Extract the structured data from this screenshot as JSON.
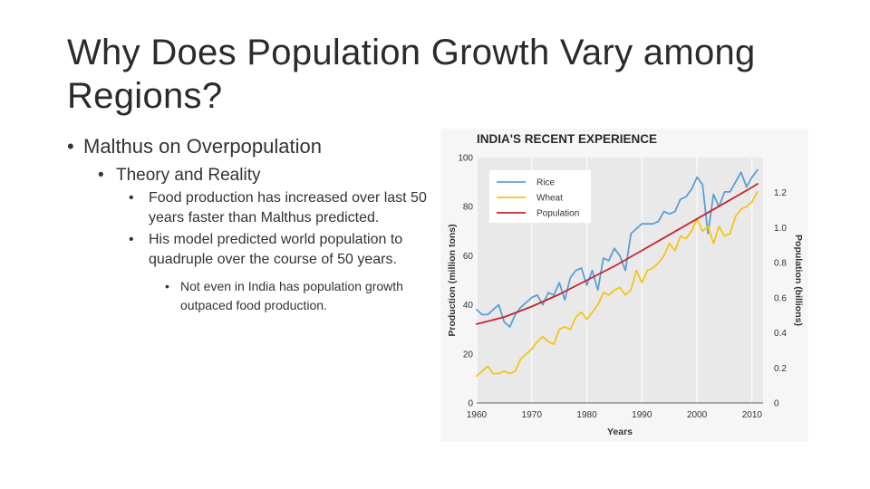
{
  "slide": {
    "title": "Why Does Population Growth Vary among Regions?",
    "bullet1": "Malthus on Overpopulation",
    "bullet2": "Theory and Reality",
    "bullet3a": "Food production has increased over last 50 years faster than Malthus predicted.",
    "bullet3b": "His model predicted world population to quadruple over the course of 50 years.",
    "bullet4": "Not even in India has population growth outpaced food production."
  },
  "colors": {
    "rice": "#5b9fd6",
    "wheat": "#f4c519",
    "population": "#c4262e",
    "plot_bg": "#e9e9e9"
  },
  "chart_data": {
    "type": "line",
    "title": "INDIA'S RECENT EXPERIENCE",
    "xlabel": "Years",
    "ylabel": "Production (million tons)",
    "y2label": "Population (billions)",
    "xlim": [
      1960,
      2012
    ],
    "ylim": [
      0,
      100
    ],
    "y2lim": [
      0,
      1.4
    ],
    "xticks": [
      "1960",
      "1970",
      "1980",
      "1990",
      "2000",
      "2010"
    ],
    "yticks": [
      "0",
      "20",
      "40",
      "60",
      "80",
      "100"
    ],
    "y2ticks": [
      "0",
      "0.2",
      "0.4",
      "0.6",
      "0.8",
      "1.0",
      "1.2"
    ],
    "legend": [
      "Rice",
      "Wheat",
      "Population"
    ],
    "series": [
      {
        "name": "Rice",
        "axis": "left",
        "x": [
          1960,
          1961,
          1962,
          1963,
          1964,
          1965,
          1966,
          1967,
          1968,
          1969,
          1970,
          1971,
          1972,
          1973,
          1974,
          1975,
          1976,
          1977,
          1978,
          1979,
          1980,
          1981,
          1982,
          1983,
          1984,
          1985,
          1986,
          1987,
          1988,
          1989,
          1990,
          1991,
          1992,
          1993,
          1994,
          1995,
          1996,
          1997,
          1998,
          1999,
          2000,
          2001,
          2002,
          2003,
          2004,
          2005,
          2006,
          2007,
          2008,
          2009,
          2010,
          2011
        ],
        "y": [
          38,
          36,
          36,
          38,
          40,
          33,
          31,
          36,
          39,
          41,
          43,
          44,
          40,
          45,
          44,
          49,
          42,
          51,
          54,
          55,
          48,
          54,
          46,
          59,
          58,
          63,
          60,
          54,
          69,
          71,
          73,
          73,
          73,
          74,
          78,
          77,
          78,
          83,
          84,
          87,
          92,
          89,
          69,
          85,
          80,
          86,
          86,
          90,
          94,
          88,
          92,
          95
        ]
      },
      {
        "name": "Wheat",
        "axis": "left",
        "x": [
          1960,
          1961,
          1962,
          1963,
          1964,
          1965,
          1966,
          1967,
          1968,
          1969,
          1970,
          1971,
          1972,
          1973,
          1974,
          1975,
          1976,
          1977,
          1978,
          1979,
          1980,
          1981,
          1982,
          1983,
          1984,
          1985,
          1986,
          1987,
          1988,
          1989,
          1990,
          1991,
          1992,
          1993,
          1994,
          1995,
          1996,
          1997,
          1998,
          1999,
          2000,
          2001,
          2002,
          2003,
          2004,
          2005,
          2006,
          2007,
          2008,
          2009,
          2010,
          2011
        ],
        "y": [
          11,
          13,
          15,
          12,
          12,
          13,
          12,
          13,
          18,
          20,
          22,
          25,
          27,
          25,
          24,
          30,
          31,
          30,
          35,
          37,
          34,
          37,
          40,
          45,
          44,
          46,
          47,
          44,
          46,
          54,
          49,
          54,
          55,
          57,
          60,
          65,
          62,
          68,
          67,
          70,
          75,
          70,
          72,
          65,
          72,
          68,
          69,
          76,
          79,
          80,
          82,
          86
        ]
      },
      {
        "name": "Population",
        "axis": "right",
        "x": [
          1960,
          1965,
          1970,
          1975,
          1980,
          1985,
          1990,
          1995,
          2000,
          2005,
          2010,
          2011
        ],
        "y": [
          0.45,
          0.49,
          0.55,
          0.62,
          0.7,
          0.78,
          0.87,
          0.96,
          1.05,
          1.14,
          1.23,
          1.25
        ]
      }
    ]
  }
}
